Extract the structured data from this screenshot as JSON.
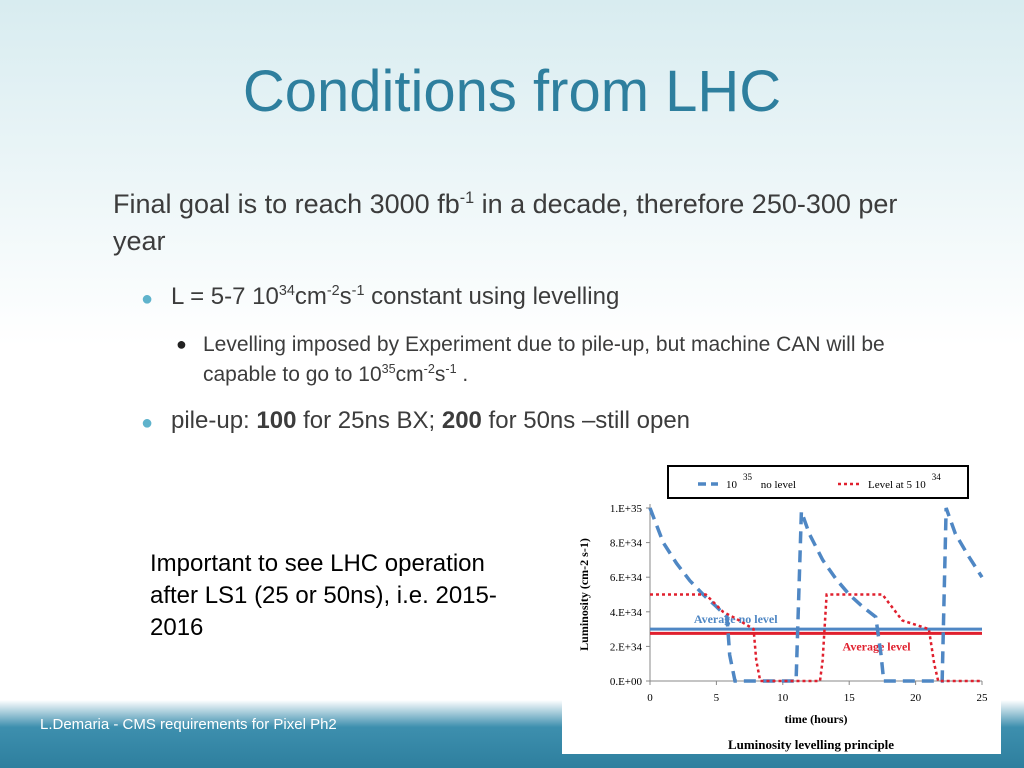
{
  "slide": {
    "title": "Conditions from LHC",
    "para": {
      "pre": "Final goal is to reach 3000 fb",
      "sup": "-1",
      "post": " in a decade, therefore 250-300 per year"
    },
    "bullet1": {
      "pre": "L = 5-7 10",
      "sup1": "34",
      "mid1": "cm",
      "sup2": "-2",
      "mid2": "s",
      "sup3": "-1",
      "post": "  constant using levelling"
    },
    "bullet1_sub": {
      "pre": "Levelling imposed by Experiment due to pile-up, but machine CAN will be capable to go to 10",
      "sup1": "35",
      "mid1": "cm",
      "sup2": "-2",
      "mid2": "s",
      "sup3": "-1",
      "post": " ."
    },
    "bullet2": {
      "pre": "pile-up:  ",
      "bold1": "100",
      "mid": " for 25ns BX; ",
      "bold2": "200",
      "post": " for 50ns –still open"
    },
    "note": "Important to see LHC operation  after LS1 (25 or 50ns), i.e. 2015-2016",
    "footer": "L.Demaria - CMS requirements for Pixel Ph2"
  },
  "chart_data": {
    "type": "line",
    "title": "Luminosity levelling principle",
    "xlabel": "time (hours)",
    "ylabel": "Luminosity (cm-2 s-1)",
    "xlim": [
      0,
      25
    ],
    "ylim": [
      0,
      1e+35
    ],
    "x_ticks": [
      0,
      5,
      10,
      15,
      20,
      25
    ],
    "x_tick_labels": [
      "0",
      "5",
      "10",
      "15",
      "20",
      "25"
    ],
    "y_ticks": [
      0,
      2e+34,
      4e+34,
      6e+34,
      8e+34,
      1e+35
    ],
    "y_tick_labels": [
      "0.E+00",
      "2.E+34",
      "4.E+34",
      "6.E+34",
      "8.E+34",
      "1.E+35"
    ],
    "legend_placement": "top",
    "legend": [
      {
        "pre": "10",
        "sup": "35",
        "post": " no level"
      },
      {
        "pre": "Level at 5 10",
        "sup": "34",
        "post": ""
      }
    ],
    "series": [
      {
        "name": "10^35 no level",
        "style": "dashed",
        "color": "#4f87c4",
        "x": [
          0,
          0.5,
          1,
          2,
          3,
          4,
          5,
          5.8,
          6,
          6.4,
          11.0,
          11.4,
          12,
          13,
          14,
          15,
          16,
          17,
          17.4,
          17.6,
          19,
          21,
          22.0,
          22.3,
          23,
          24,
          25
        ],
        "y": [
          1e+35,
          9e+34,
          8e+34,
          6.8e+34,
          5.8e+34,
          5e+34,
          4.3e+34,
          3.7e+34,
          1.5e+34,
          0,
          0,
          9.8e+34,
          8.5e+34,
          7e+34,
          5.9e+34,
          5e+34,
          4.3e+34,
          3.7e+34,
          1.5e+34,
          0,
          0,
          0,
          0,
          1e+35,
          8.5e+34,
          7.2e+34,
          6e+34
        ]
      },
      {
        "name": "Level at 5 10^34",
        "style": "dotted",
        "color": "#e0202e",
        "x": [
          0,
          4.2,
          5.5,
          6.5,
          7.8,
          8.0,
          8.3,
          10.0,
          12.8,
          13.0,
          13.3,
          17.5,
          19.0,
          21.0,
          21.4,
          21.7,
          25
        ],
        "y": [
          5e+34,
          5e+34,
          4e+34,
          3.6e+34,
          3e+34,
          1.2e+34,
          0,
          0,
          0,
          1.2e+34,
          5e+34,
          5e+34,
          3.5e+34,
          3e+34,
          1e+34,
          0,
          0
        ]
      }
    ],
    "averages": [
      {
        "name": "Average  no level",
        "value": 3e+34,
        "color": "#4f87c4",
        "label_x": 3.3
      },
      {
        "name": "Average  level",
        "value": 2.75e+34,
        "color": "#e0202e",
        "label_x": 14.5
      }
    ]
  }
}
